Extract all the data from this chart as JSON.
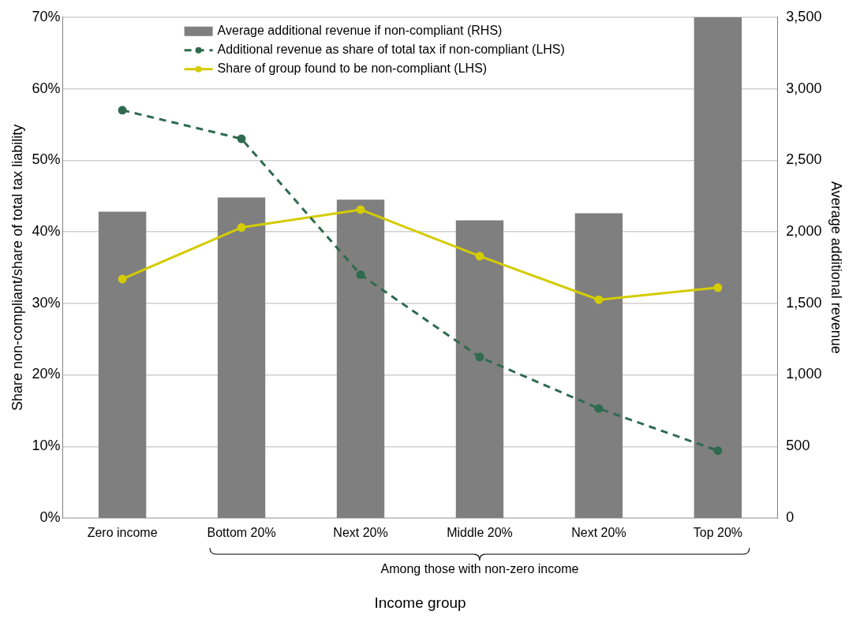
{
  "chart_data": {
    "type": "bar",
    "categories": [
      "Zero income",
      "Bottom 20%",
      "Next 20%",
      "Middle 20%",
      "Next 20%",
      "Top 20%"
    ],
    "series": [
      {
        "name": "Average additional revenue if non-compliant (RHS)",
        "axis": "y2",
        "color": "#7f7f7f",
        "values": [
          2140,
          2240,
          2225,
          2080,
          2130,
          3500
        ]
      },
      {
        "name": "Additional revenue as share of total tax if non-compliant (LHS)",
        "type": "line",
        "color": "#2e6b4f",
        "line_style": "dashed",
        "marker": "circle",
        "values": [
          57.0,
          53.0,
          34.0,
          22.5,
          15.3,
          9.4
        ]
      },
      {
        "name": "Share of group found to be non-compliant (LHS)",
        "type": "line",
        "color": "#d4cc00",
        "line_style": "solid",
        "marker": "circle",
        "values": [
          33.4,
          40.6,
          43.1,
          36.6,
          30.5,
          32.2
        ]
      }
    ],
    "xlabel": "Income group",
    "ylabel": "Share non-compliant/share of total tax liability",
    "y2label": "Average additional revenue",
    "ylim": [
      0,
      70
    ],
    "yticks": [
      {
        "value": 0,
        "label": "0%"
      },
      {
        "value": 10,
        "label": "10%"
      },
      {
        "value": 20,
        "label": "20%"
      },
      {
        "value": 30,
        "label": "30%"
      },
      {
        "value": 40,
        "label": "40%"
      },
      {
        "value": 50,
        "label": "50%"
      },
      {
        "value": 60,
        "label": "60%"
      },
      {
        "value": 70,
        "label": "70%"
      }
    ],
    "y2lim": [
      0,
      3500
    ],
    "y2ticks": [
      0,
      500,
      {
        "value": 1000,
        "label": "1,000"
      },
      {
        "value": 1500,
        "label": "1,500"
      },
      {
        "value": 2000,
        "label": "2,000"
      },
      {
        "value": 2500,
        "label": "2,500"
      },
      {
        "value": 3000,
        "label": "3,000"
      },
      {
        "value": 3500,
        "label": "3,500"
      }
    ],
    "annotations": [
      {
        "text": "Among those with non-zero income"
      }
    ],
    "grid": "y",
    "legend": "top"
  }
}
